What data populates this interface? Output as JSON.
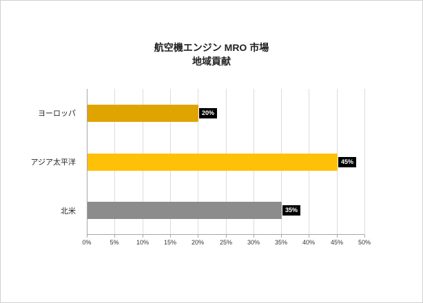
{
  "frame": {
    "background": "#FFFFFF",
    "border_color": "#CFCFCF"
  },
  "chart_data": {
    "type": "bar",
    "orientation": "horizontal",
    "title_line1": "航空機エンジン MRO 市場",
    "title_line2": "地域貢献",
    "categories": [
      "ヨーロッパ",
      "アジア太平洋",
      "北米"
    ],
    "values": [
      20,
      45,
      35
    ],
    "value_labels": [
      "20%",
      "45%",
      "35%"
    ],
    "bar_colors": [
      "#E0A400",
      "#FFC107",
      "#8C8C8C"
    ],
    "xlim": [
      0,
      50
    ],
    "x_ticks": [
      "0%",
      "5%",
      "10%",
      "15%",
      "20%",
      "25%",
      "30%",
      "35%",
      "40%",
      "45%",
      "50%"
    ],
    "grid": true,
    "legend": false,
    "gridline_color": "#DCDCDC",
    "axis_color": "#A6A6A6",
    "badge_bg": "#000000",
    "badge_text_color": "#FFFFFF",
    "title_color": "#212121"
  }
}
